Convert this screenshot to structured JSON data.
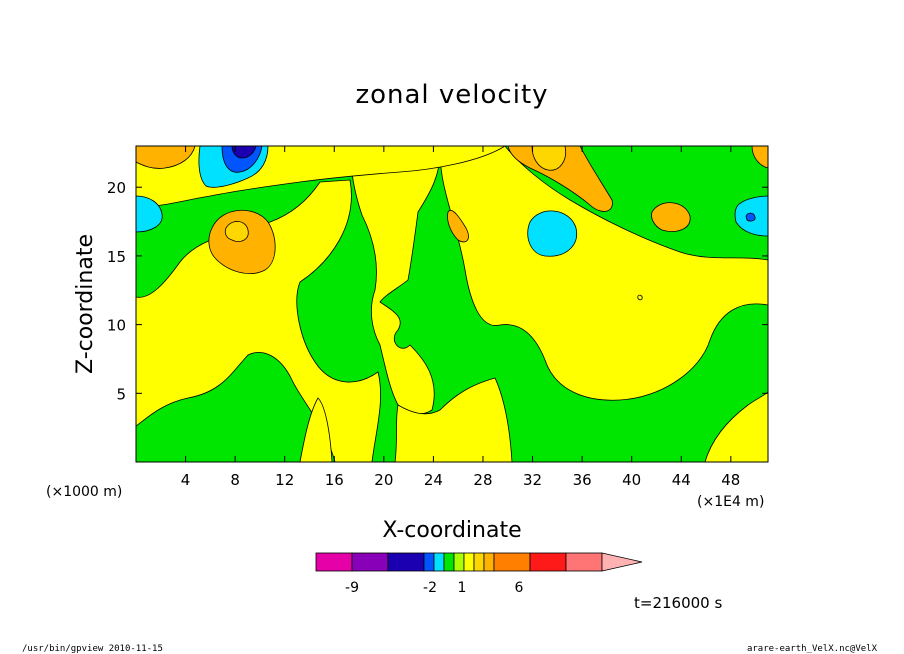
{
  "chart_data": {
    "type": "heatmap",
    "title": "zonal velocity",
    "xlabel": "X-coordinate",
    "ylabel": "Z-coordinate",
    "x_unit_note": "(×1E4 m)",
    "y_unit_note": "(×1000 m)",
    "xlim": [
      0,
      51
    ],
    "ylim": [
      0,
      23
    ],
    "x_ticks": [
      4,
      8,
      12,
      16,
      20,
      24,
      28,
      32,
      36,
      40,
      44,
      48
    ],
    "y_ticks": [
      5,
      10,
      15,
      20
    ],
    "colorbar": {
      "colors": [
        "#e600a8",
        "#8800b8",
        "#1a00b0",
        "#0055ff",
        "#00e1ff",
        "#00e600",
        "#aaff00",
        "#ffff00",
        "#ffd700",
        "#ffb300",
        "#ff7f00",
        "#ff1a1a",
        "#ff7575",
        "#ffb2b2"
      ],
      "tick_labels": [
        "-9",
        "-2",
        "1",
        "6"
      ]
    },
    "time_label": "t=216000 s"
  },
  "colors": {
    "background": "#00e600",
    "band_yellow": "#ffff00",
    "band_light_orange": "#ffd700",
    "band_orange": "#ffb300",
    "band_cyan": "#00e1ff",
    "band_blue": "#0055ff",
    "band_dark_blue": "#1a00b0"
  },
  "footer": {
    "left": "/usr/bin/gpview  2010-11-15",
    "right": "arare-earth_VelX.nc@VelX"
  }
}
